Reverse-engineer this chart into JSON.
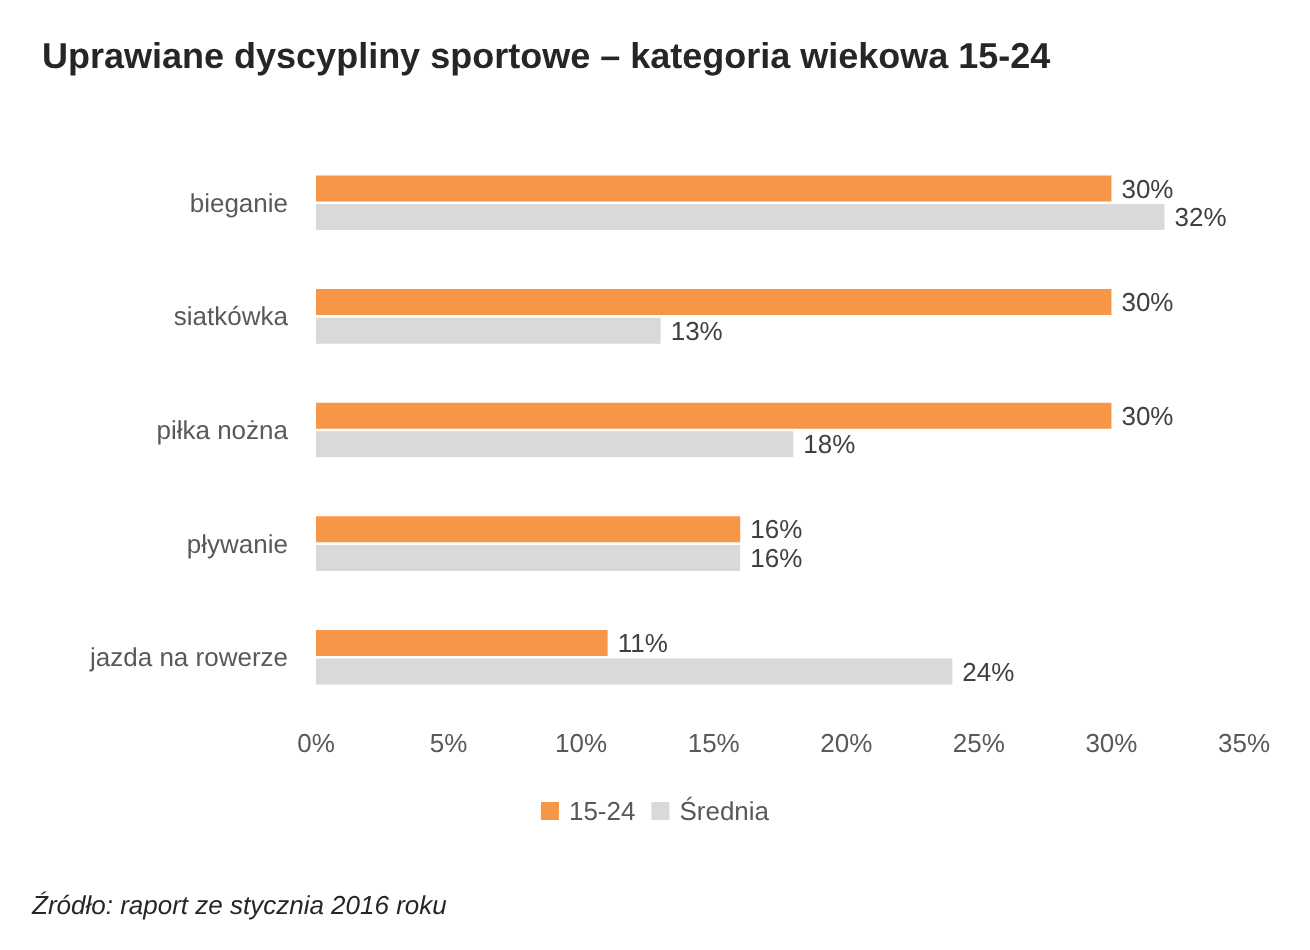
{
  "chart_data": {
    "type": "bar",
    "orientation": "horizontal",
    "title": "Uprawiane dyscypliny sportowe – kategoria wiekowa 15-24",
    "categories": [
      "bieganie",
      "siatkówka",
      "piłka nożna",
      "pływanie",
      "jazda na rowerze"
    ],
    "series": [
      {
        "name": "15-24",
        "color": "#f79646",
        "values": [
          30,
          30,
          30,
          16,
          11
        ],
        "value_labels": [
          "30%",
          "30%",
          "30%",
          "16%",
          "11%"
        ]
      },
      {
        "name": "Średnia",
        "color": "#d9d9d9",
        "values": [
          32,
          13,
          18,
          16,
          24
        ],
        "value_labels": [
          "32%",
          "13%",
          "18%",
          "16%",
          "24%"
        ]
      }
    ],
    "xlim": [
      0,
      35
    ],
    "xticks": [
      {
        "value": 0,
        "label": "0%"
      },
      {
        "value": 5,
        "label": "5%"
      },
      {
        "value": 10,
        "label": "10%"
      },
      {
        "value": 15,
        "label": "15%"
      },
      {
        "value": 20,
        "label": "20%"
      },
      {
        "value": 25,
        "label": "25%"
      },
      {
        "value": 30,
        "label": "30%"
      },
      {
        "value": 35,
        "label": "35%"
      }
    ],
    "legend": "bottom",
    "grid": false,
    "annotations": [
      "Źródło: raport ze stycznia 2016 roku"
    ]
  }
}
